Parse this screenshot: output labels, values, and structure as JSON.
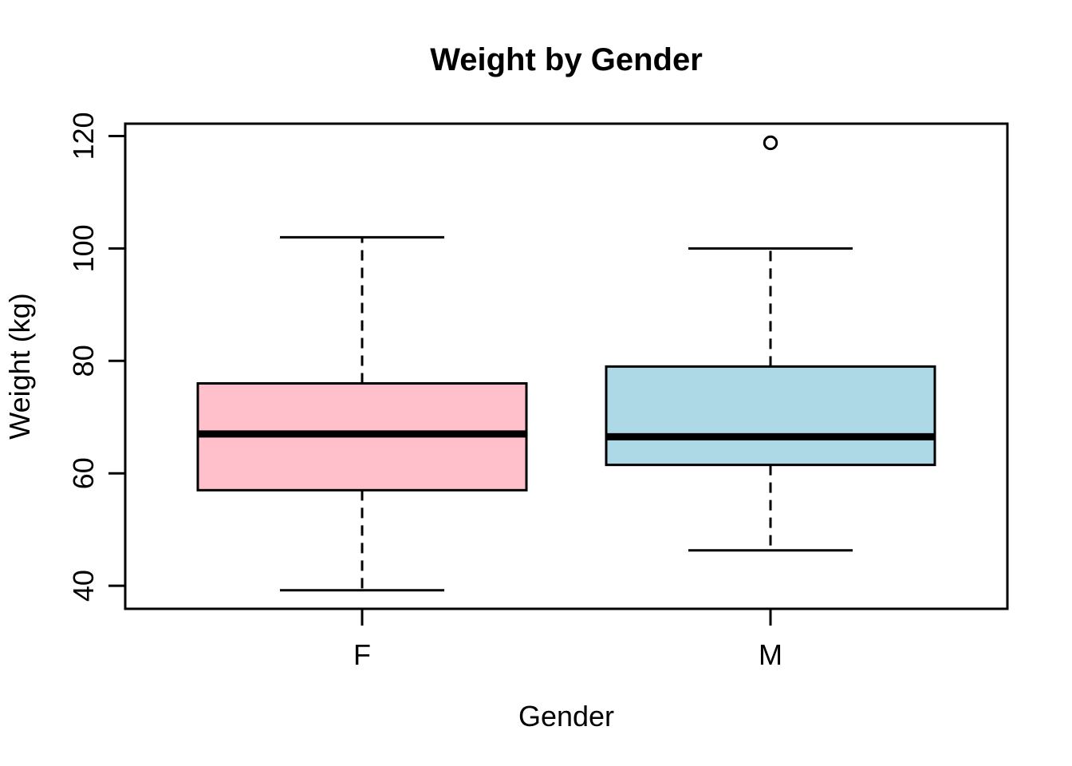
{
  "chart_data": {
    "type": "boxplot",
    "title": "Weight by Gender",
    "xlabel": "Gender",
    "ylabel": "Weight (kg)",
    "categories": [
      "F",
      "M"
    ],
    "y_ticks": [
      40,
      60,
      80,
      100,
      120
    ],
    "ylim": [
      35.9,
      122.2
    ],
    "grid": false,
    "legend": "none",
    "series": [
      {
        "name": "F",
        "lower_whisker": 39.2,
        "q1": 57,
        "median": 67,
        "q3": 76,
        "upper_whisker": 102,
        "outliers": [],
        "fill": "#FFC0CB"
      },
      {
        "name": "M",
        "lower_whisker": 46.3,
        "q1": 61.5,
        "median": 66.5,
        "q3": 79,
        "upper_whisker": 100,
        "outliers": [
          118.8
        ],
        "fill": "#ADD8E6"
      }
    ],
    "colors": {
      "stroke": "#000000",
      "background": "#FFFFFF"
    }
  }
}
